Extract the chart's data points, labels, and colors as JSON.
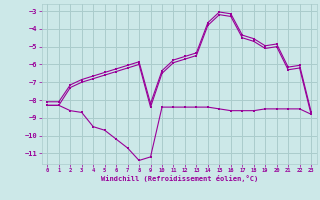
{
  "background_color": "#cce8e8",
  "grid_color": "#aacccc",
  "line_color": "#990099",
  "xlim": [
    -0.5,
    23.5
  ],
  "ylim": [
    -11.6,
    -2.6
  ],
  "yticks": [
    -11,
    -10,
    -9,
    -8,
    -7,
    -6,
    -5,
    -4,
    -3
  ],
  "xticks": [
    0,
    1,
    2,
    3,
    4,
    5,
    6,
    7,
    8,
    9,
    10,
    11,
    12,
    13,
    14,
    15,
    16,
    17,
    18,
    19,
    20,
    21,
    22,
    23
  ],
  "xlabel": "Windchill (Refroidissement éolien,°C)",
  "series1_x": [
    0,
    1,
    2,
    3,
    4,
    5,
    6,
    7,
    8,
    9,
    10,
    11,
    12,
    13,
    14,
    15,
    16,
    17,
    18,
    19,
    20,
    21,
    22,
    23
  ],
  "series1_y": [
    -8.3,
    -8.3,
    -7.3,
    -7.0,
    -6.8,
    -6.6,
    -6.4,
    -6.2,
    -6.0,
    -8.4,
    -6.5,
    -5.9,
    -5.7,
    -5.5,
    -3.8,
    -3.2,
    -3.3,
    -4.5,
    -4.7,
    -5.1,
    -5.0,
    -6.3,
    -6.2,
    -8.8
  ],
  "series2_x": [
    0,
    1,
    2,
    3,
    4,
    5,
    6,
    7,
    8,
    9,
    10,
    11,
    12,
    13,
    14,
    15,
    16,
    17,
    18,
    19,
    20,
    21,
    22,
    23
  ],
  "series2_y": [
    -8.3,
    -8.3,
    -8.6,
    -8.7,
    -9.5,
    -9.7,
    -10.2,
    -10.7,
    -11.4,
    -11.2,
    -8.4,
    -8.4,
    -8.4,
    -8.4,
    -8.4,
    -8.5,
    -8.6,
    -8.6,
    -8.6,
    -8.5,
    -8.5,
    -8.5,
    -8.5,
    -8.8
  ],
  "series3_x": [
    0,
    1,
    2,
    3,
    4,
    5,
    6,
    7,
    8,
    9,
    10,
    11,
    12,
    13,
    14,
    15,
    16,
    17,
    18,
    19,
    20,
    21,
    22,
    23
  ],
  "series3_y": [
    -8.1,
    -8.1,
    -7.15,
    -6.85,
    -6.65,
    -6.45,
    -6.25,
    -6.05,
    -5.85,
    -8.2,
    -6.35,
    -5.75,
    -5.55,
    -5.35,
    -3.65,
    -3.05,
    -3.15,
    -4.35,
    -4.55,
    -4.95,
    -4.85,
    -6.15,
    -6.05,
    -8.65
  ]
}
